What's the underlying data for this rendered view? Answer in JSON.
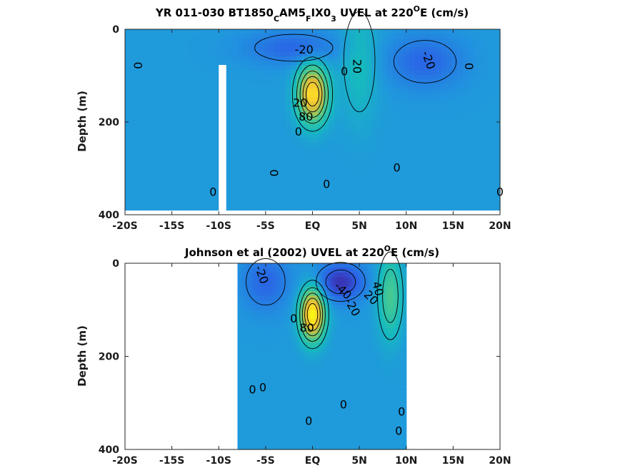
{
  "chart_data": [
    {
      "type": "heatmap",
      "title": {
        "prefix": "YR 011-030 BT1850",
        "sub1": "C",
        "mid1": "AM5",
        "sub2": "F",
        "mid2": "IX0",
        "sub3": "3",
        "mid3": " UVEL at 220",
        "sup": "O",
        "suffix": "E (cm/s)"
      },
      "xlabel": "",
      "ylabel": "Depth (m)",
      "xlim": [
        -20,
        20
      ],
      "ylim": [
        0,
        400
      ],
      "y_reversed": true,
      "x_ticks": [
        -20,
        -15,
        -10,
        -5,
        0,
        5,
        10,
        15,
        20
      ],
      "x_tick_labels": [
        "-20S",
        "-15S",
        "-10S",
        "-5S",
        "EQ",
        "5N",
        "10N",
        "15N",
        "20N"
      ],
      "y_ticks": [
        0,
        200,
        400
      ],
      "y_tick_labels": [
        "0",
        "200",
        "400"
      ],
      "data_range_x": [
        -20,
        20
      ],
      "data_range_y": [
        0,
        390
      ],
      "gap": {
        "x": [
          -10,
          -9.2
        ],
        "y": [
          77,
          400
        ]
      },
      "features": [
        {
          "kind": "jet",
          "x": 0,
          "y": 140,
          "sx": 1.6,
          "sy": 60,
          "peak": 100
        },
        {
          "kind": "jet",
          "x": 5,
          "y": 70,
          "sx": 2.0,
          "sy": 130,
          "peak": 20
        },
        {
          "kind": "trough",
          "x": -2,
          "y": 40,
          "sx": 5,
          "sy": 35,
          "peak": -25
        },
        {
          "kind": "trough",
          "x": 12,
          "y": 70,
          "sx": 4,
          "sy": 55,
          "peak": -25
        }
      ],
      "contour_labels": [
        {
          "x": -18.7,
          "y": 78,
          "text": "0",
          "rot": 90
        },
        {
          "x": -0.9,
          "y": 45,
          "text": "-20",
          "rot": 0
        },
        {
          "x": 4.7,
          "y": 80,
          "text": "20",
          "rot": 90
        },
        {
          "x": 12.3,
          "y": 67,
          "text": "-20",
          "rot": 70
        },
        {
          "x": 16.6,
          "y": 80,
          "text": "0",
          "rot": 90
        },
        {
          "x": 3.4,
          "y": 92,
          "text": "0",
          "rot": 0
        },
        {
          "x": -1.3,
          "y": 160,
          "text": "20",
          "rot": 0
        },
        {
          "x": -0.7,
          "y": 190,
          "text": "80",
          "rot": 0
        },
        {
          "x": -1.5,
          "y": 222,
          "text": "0",
          "rot": 0
        },
        {
          "x": -4.2,
          "y": 310,
          "text": "0",
          "rot": 90
        },
        {
          "x": 1.5,
          "y": 335,
          "text": "0",
          "rot": 0
        },
        {
          "x": 9.0,
          "y": 300,
          "text": "0",
          "rot": 0
        },
        {
          "x": -10.6,
          "y": 352,
          "text": "0",
          "rot": 0
        },
        {
          "x": 20,
          "y": 352,
          "text": "0",
          "rot": 0
        }
      ]
    },
    {
      "type": "heatmap",
      "title": {
        "prefix": "Johnson et al (2002) UVEL at 220",
        "sup": "O",
        "suffix": "E (cm/s)"
      },
      "xlabel": "",
      "ylabel": "Depth (m)",
      "xlim": [
        -20,
        20
      ],
      "ylim": [
        0,
        400
      ],
      "y_reversed": true,
      "x_ticks": [
        -20,
        -15,
        -10,
        -5,
        0,
        5,
        10,
        15,
        20
      ],
      "x_tick_labels": [
        "-20S",
        "-15S",
        "-10S",
        "-5S",
        "EQ",
        "5N",
        "10N",
        "15N",
        "20N"
      ],
      "y_ticks": [
        0,
        200,
        400
      ],
      "y_tick_labels": [
        "0",
        "200",
        "400"
      ],
      "data_range_x": [
        -8,
        10
      ],
      "data_range_y": [
        0,
        400
      ],
      "features": [
        {
          "kind": "jet",
          "x": 0,
          "y": 110,
          "sx": 1.3,
          "sy": 55,
          "peak": 110
        },
        {
          "kind": "jet",
          "x": 8.3,
          "y": 70,
          "sx": 1.3,
          "sy": 90,
          "peak": 40
        },
        {
          "kind": "trough",
          "x": 3,
          "y": 40,
          "sx": 2.5,
          "sy": 40,
          "peak": -45
        },
        {
          "kind": "trough",
          "x": -5,
          "y": 40,
          "sx": 2.5,
          "sy": 60,
          "peak": -25
        }
      ],
      "contour_labels": [
        {
          "x": -5.5,
          "y": 25,
          "text": "-20",
          "rot": 70
        },
        {
          "x": 3.2,
          "y": 60,
          "text": "-40",
          "rot": 45
        },
        {
          "x": 4.2,
          "y": 95,
          "text": "-20",
          "rot": 60
        },
        {
          "x": 6.2,
          "y": 75,
          "text": "20",
          "rot": 45
        },
        {
          "x": 6.9,
          "y": 55,
          "text": "40",
          "rot": 75
        },
        {
          "x": -2.0,
          "y": 120,
          "text": "0",
          "rot": 0
        },
        {
          "x": -0.6,
          "y": 140,
          "text": "80",
          "rot": 0
        },
        {
          "x": -6.4,
          "y": 273,
          "text": "0",
          "rot": 0
        },
        {
          "x": -5.3,
          "y": 268,
          "text": "0",
          "rot": 0
        },
        {
          "x": 3.3,
          "y": 305,
          "text": "0",
          "rot": 0
        },
        {
          "x": -0.4,
          "y": 340,
          "text": "0",
          "rot": 0
        },
        {
          "x": 9.5,
          "y": 320,
          "text": "0",
          "rot": 0
        },
        {
          "x": 9.2,
          "y": 362,
          "text": "0",
          "rot": 0
        }
      ]
    }
  ]
}
